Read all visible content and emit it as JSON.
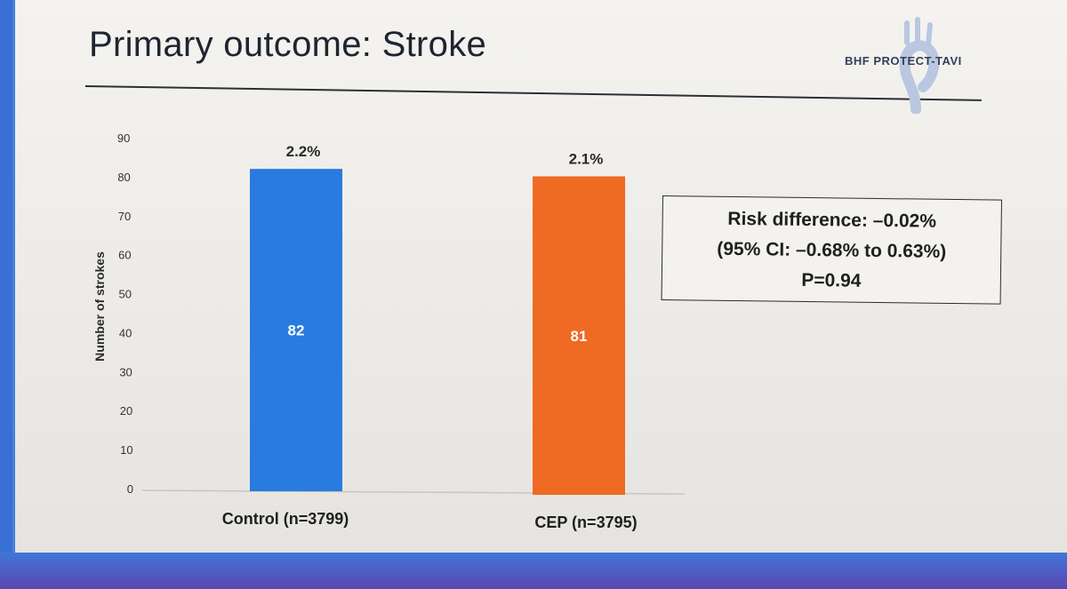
{
  "slide": {
    "title": "Primary outcome: Stroke",
    "logo_text": "BHF PROTECT-TAVI"
  },
  "stats": {
    "risk_difference": "Risk difference:  –0.02%",
    "ci": "(95% CI: –0.68% to 0.63%)",
    "p_value": "P=0.94"
  },
  "colors": {
    "control": "#2a7be0",
    "cep": "#ef6a22",
    "axis_text": "#333333"
  },
  "chart_data": {
    "type": "bar",
    "title": "Primary outcome: Stroke",
    "xlabel": "",
    "ylabel": "Number of strokes",
    "ylim": [
      0,
      90
    ],
    "yticks": [
      0,
      10,
      20,
      30,
      40,
      50,
      60,
      70,
      80,
      90
    ],
    "grid": false,
    "categories": [
      "Control (n=3799)",
      "CEP (n=3795)"
    ],
    "values": [
      82,
      81
    ],
    "value_labels": [
      "82",
      "81"
    ],
    "percent_labels": [
      "2.2%",
      "2.1%"
    ],
    "bar_colors": [
      "#2a7be0",
      "#ef6a22"
    ]
  }
}
